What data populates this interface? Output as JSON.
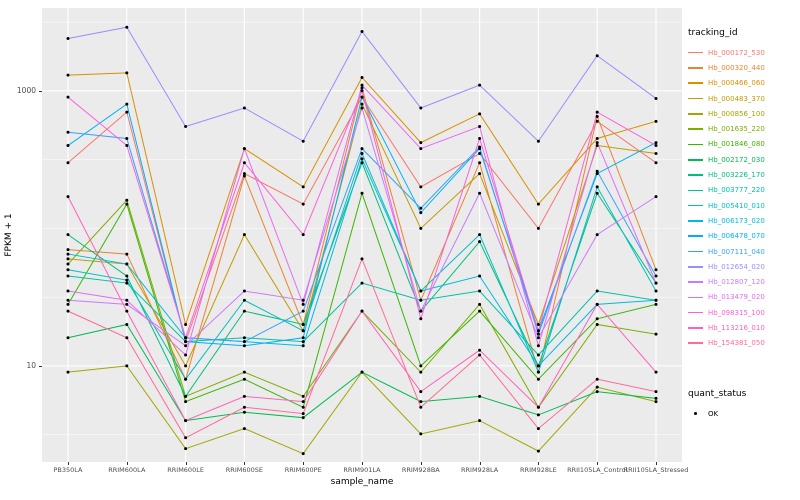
{
  "figure": {
    "background": "#FFFFFF",
    "panel_background": "#EBEBEB",
    "grid_color": "#FFFFFF",
    "tick_text_color": "#4D4D4D"
  },
  "chart_data": {
    "type": "line",
    "title": "",
    "xlabel": "sample_name",
    "ylabel": "FPKM + 1",
    "y_scale": "log10",
    "ylim": [
      2,
      4000
    ],
    "y_ticks": [
      10,
      1000
    ],
    "y_minor_gridlines": [
      3.16,
      31.6,
      100,
      316,
      3160
    ],
    "grid": true,
    "legend_position": "right",
    "point_color": "#000000",
    "categories": [
      "PB350LA",
      "RRIM600LA",
      "RRIM600LE",
      "RRIM600SE",
      "RRIM600PE",
      "RRIM901LA",
      "RRIM928BA",
      "RRIM928LA",
      "RRIM928LE",
      "RRII105LA_Control",
      "RRII105LA_Stressed"
    ],
    "series": [
      {
        "name": "Hb_000172_530",
        "color": "#F8766D",
        "values": [
          300,
          700,
          15,
          250,
          150,
          900,
          200,
          350,
          100,
          600,
          300
        ]
      },
      {
        "name": "Hb_000320_440",
        "color": "#EA8331",
        "values": [
          70,
          65,
          8,
          240,
          20,
          1050,
          30,
          300,
          9,
          650,
          50
        ]
      },
      {
        "name": "Hb_000466_060",
        "color": "#D89000",
        "values": [
          1300,
          1350,
          20,
          380,
          200,
          1250,
          420,
          680,
          150,
          450,
          600
        ]
      },
      {
        "name": "Hb_000483_370",
        "color": "#C09B00",
        "values": [
          60,
          55,
          10,
          90,
          18,
          800,
          100,
          250,
          20,
          400,
          350
        ]
      },
      {
        "name": "Hb_000856_100",
        "color": "#A3A500",
        "values": [
          9,
          10,
          2.5,
          3.5,
          2.3,
          9,
          3.2,
          4,
          2.4,
          7,
          5.5
        ]
      },
      {
        "name": "Hb_001635_220",
        "color": "#7CAE00",
        "values": [
          55,
          160,
          6,
          9,
          6,
          25,
          9,
          28,
          5,
          20,
          17
        ]
      },
      {
        "name": "Hb_001846_080",
        "color": "#39B600",
        "values": [
          28,
          150,
          5.5,
          8,
          5,
          180,
          10,
          25,
          8,
          22,
          28
        ]
      },
      {
        "name": "Hb_002172_030",
        "color": "#00BB4E",
        "values": [
          16,
          20,
          4,
          4.6,
          4.2,
          9,
          5.5,
          6,
          4.4,
          6.5,
          5.8
        ]
      },
      {
        "name": "Hb_003226_170",
        "color": "#00BF7D",
        "values": [
          90,
          45,
          6,
          25,
          20,
          300,
          25,
          80,
          10,
          180,
          40
        ]
      },
      {
        "name": "Hb_003777_220",
        "color": "#00C1A3",
        "values": [
          45,
          40,
          15,
          16,
          15,
          40,
          30,
          35,
          12,
          35,
          30
        ]
      },
      {
        "name": "Hb_005410_010",
        "color": "#00BFC4",
        "values": [
          50,
          42,
          8,
          30,
          18,
          350,
          35,
          90,
          9,
          200,
          35
        ]
      },
      {
        "name": "Hb_006173_020",
        "color": "#00BAE0",
        "values": [
          65,
          55,
          16,
          15,
          14,
          320,
          35,
          45,
          10,
          28,
          30
        ]
      },
      {
        "name": "Hb_006478_070",
        "color": "#00B0F6",
        "values": [
          400,
          800,
          15,
          14,
          16,
          900,
          130,
          380,
          18,
          250,
          420
        ]
      },
      {
        "name": "Hb_007111_040",
        "color": "#35A2FF",
        "values": [
          500,
          450,
          16,
          15,
          25,
          380,
          140,
          390,
          17,
          260,
          45
        ]
      },
      {
        "name": "Hb_012654_020",
        "color": "#9590FF",
        "values": [
          2400,
          2900,
          550,
          750,
          430,
          2700,
          750,
          1100,
          430,
          1800,
          880
        ]
      },
      {
        "name": "Hb_012807_120",
        "color": "#C77CFF",
        "values": [
          30,
          28,
          14,
          35,
          30,
          750,
          25,
          180,
          16,
          90,
          170
        ]
      },
      {
        "name": "Hb_013479_020",
        "color": "#E76BF3",
        "values": [
          35,
          30,
          12,
          380,
          28,
          1100,
          380,
          550,
          14,
          420,
          40
        ]
      },
      {
        "name": "Hb_098315_100",
        "color": "#FA62DB",
        "values": [
          900,
          400,
          16,
          300,
          90,
          1000,
          22,
          450,
          18,
          700,
          400
        ]
      },
      {
        "name": "Hb_113216_010",
        "color": "#FF62BC",
        "values": [
          170,
          25,
          4,
          6,
          5.5,
          25,
          6.5,
          13,
          5,
          28,
          9
        ]
      },
      {
        "name": "Hb_154381_050",
        "color": "#FF6A98",
        "values": [
          25,
          16,
          3,
          5,
          4.5,
          60,
          5,
          12,
          3.5,
          8,
          6.5
        ]
      }
    ]
  },
  "legend": {
    "title": "tracking_id"
  },
  "legend2": {
    "title": "quant_status",
    "ok_label": "OK"
  }
}
